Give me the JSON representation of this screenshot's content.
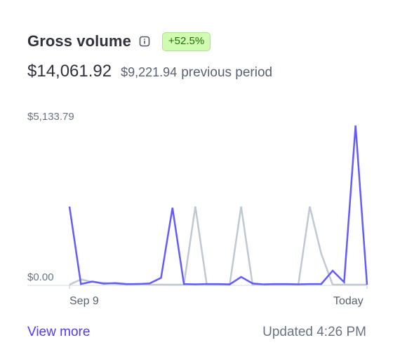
{
  "header": {
    "title": "Gross volume",
    "info_icon": "info-icon",
    "change_badge": "+52.5%"
  },
  "summary": {
    "total": "$14,061.92",
    "previous_amount": "$9,221.94",
    "previous_label": "previous period"
  },
  "chart_data": {
    "type": "line",
    "title": "",
    "xlabel": "",
    "ylabel": "",
    "ylim": [
      0,
      5133.79
    ],
    "y_tick_labels": [
      "$5,133.79",
      "$0.00"
    ],
    "x_tick_labels": [
      "Sep 9",
      "Today"
    ],
    "grid": false,
    "legend": "none",
    "series": [
      {
        "color": "#635bff",
        "values": [
          2520,
          20,
          100,
          30,
          50,
          20,
          20,
          40,
          220,
          2480,
          20,
          10,
          20,
          20,
          10,
          250,
          40,
          10,
          20,
          20,
          10,
          20,
          20,
          450,
          80,
          5133.79,
          0
        ]
      },
      {
        "color": "#c0c8d2",
        "values": [
          0,
          170,
          90,
          60,
          30,
          0,
          30,
          0,
          0,
          0,
          0,
          2520,
          0,
          0,
          0,
          2520,
          0,
          0,
          0,
          0,
          0,
          2520,
          1000,
          0,
          0,
          0,
          0
        ]
      }
    ]
  },
  "footer": {
    "view_more": "View more",
    "updated": "Updated 4:26 PM"
  }
}
